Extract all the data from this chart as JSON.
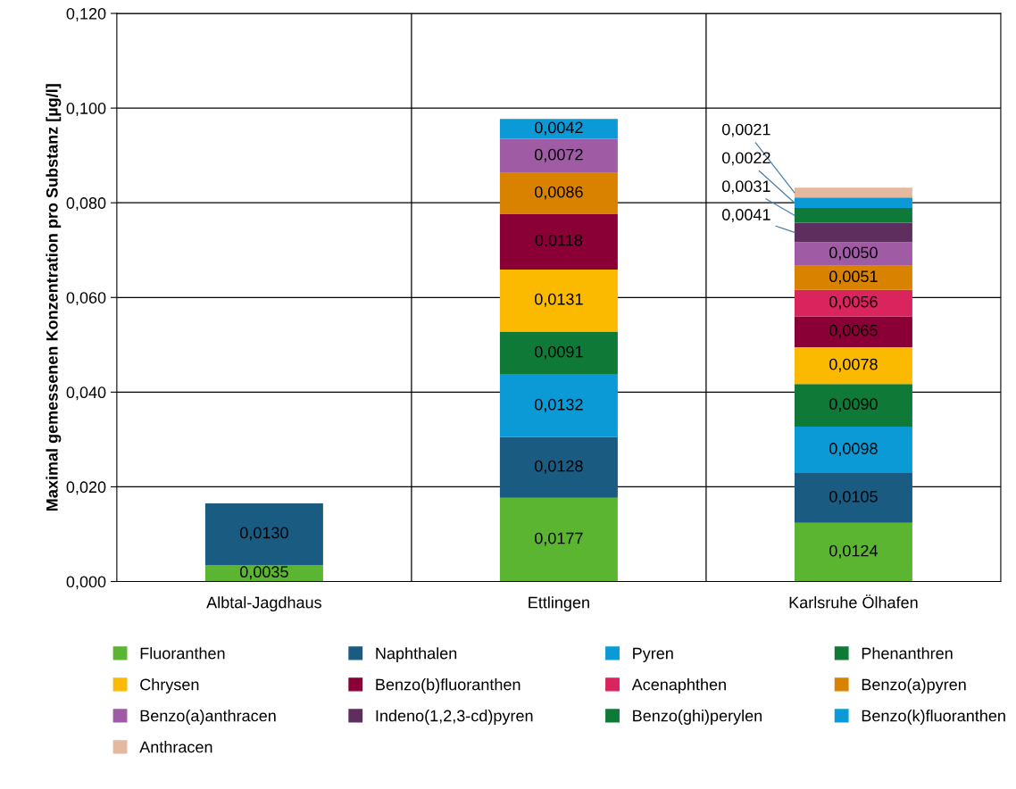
{
  "chart_data": {
    "type": "bar",
    "stacked": true,
    "grid": true,
    "legend": "bottom",
    "ylabel": "Maximal gemessenen Konzentration pro Substanz [µg/l]",
    "categories": [
      "Albtal-Jagdhaus",
      "Ettlingen",
      "Karlsruhe Ölhafen"
    ],
    "ylim": [
      0,
      0.12
    ],
    "yticks": [
      {
        "value": 0,
        "label": "0,000"
      },
      {
        "value": 0.02,
        "label": "0,020"
      },
      {
        "value": 0.04,
        "label": "0,040"
      },
      {
        "value": 0.06,
        "label": "0,060"
      },
      {
        "value": 0.08,
        "label": "0,080"
      },
      {
        "value": 0.1,
        "label": "0,100"
      },
      {
        "value": 0.12,
        "label": "0,120"
      }
    ],
    "series": [
      {
        "name": "Fluoranthen",
        "color": "#5cb531",
        "values": [
          0.0035,
          0.0177,
          0.0124
        ],
        "value_labels": [
          "0,0035",
          "0,0177",
          "0,0124"
        ]
      },
      {
        "name": "Naphthalen",
        "color": "#1a5b82",
        "values": [
          0.013,
          0.0128,
          0.0105
        ],
        "value_labels": [
          "0,0130",
          "0,0128",
          "0,0105"
        ]
      },
      {
        "name": "Pyren",
        "color": "#0b9ad6",
        "values": [
          null,
          0.0132,
          0.0098
        ],
        "value_labels": [
          null,
          "0,0132",
          "0,0098"
        ]
      },
      {
        "name": "Phenanthren",
        "color": "#0f7a38",
        "values": [
          null,
          0.0091,
          0.009
        ],
        "value_labels": [
          null,
          "0,0091",
          "0,0090"
        ]
      },
      {
        "name": "Chrysen",
        "color": "#fbba00",
        "values": [
          null,
          0.0131,
          0.0078
        ],
        "value_labels": [
          null,
          "0,0131",
          "0,0078"
        ]
      },
      {
        "name": "Benzo(b)fluoranthen",
        "color": "#8a0036",
        "values": [
          null,
          0.0118,
          0.0065
        ],
        "value_labels": [
          null,
          "0,0118",
          "0,0065"
        ]
      },
      {
        "name": "Acenaphthen",
        "color": "#d9245e",
        "values": [
          null,
          null,
          0.0056
        ],
        "value_labels": [
          null,
          null,
          "0,0056"
        ]
      },
      {
        "name": "Benzo(a)pyren",
        "color": "#d98200",
        "values": [
          null,
          0.0086,
          0.0051
        ],
        "value_labels": [
          null,
          "0,0086",
          "0,0051"
        ]
      },
      {
        "name": "Benzo(a)anthracen",
        "color": "#a05ba5",
        "values": [
          null,
          0.0072,
          0.005
        ],
        "value_labels": [
          null,
          "0,0072",
          "0,0050"
        ]
      },
      {
        "name": "Indeno(1,2,3-cd)pyren",
        "color": "#5e2f5e",
        "values": [
          null,
          null,
          0.0041
        ],
        "value_labels": [
          null,
          null,
          "0,0041"
        ]
      },
      {
        "name": "Benzo(ghi)perylen",
        "color": "#0f7a38",
        "values": [
          null,
          null,
          0.0031
        ],
        "value_labels": [
          null,
          null,
          "0,0031"
        ]
      },
      {
        "name": "Benzo(k)fluoranthen",
        "color": "#0b9ad6",
        "values": [
          null,
          0.0042,
          0.0022
        ],
        "value_labels": [
          null,
          "0,0042",
          "0,0022"
        ]
      },
      {
        "name": "Anthracen",
        "color": "#e5b9a0",
        "values": [
          null,
          null,
          0.0021
        ],
        "value_labels": [
          null,
          null,
          "0,0021"
        ]
      }
    ]
  }
}
